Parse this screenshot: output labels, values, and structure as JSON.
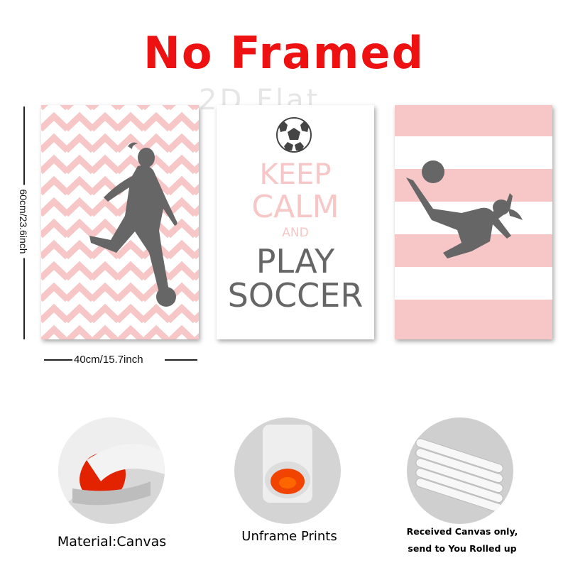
{
  "header": {
    "title": "No Framed",
    "watermark": "2D Flat"
  },
  "posters": {
    "center": {
      "line1": "KEEP",
      "line2": "CALM",
      "line3": "AND",
      "line4": "PLAY",
      "line5": "SOCCER"
    }
  },
  "dimensions": {
    "height": "60cm/23.6inch",
    "width": "40cm/15.7inch"
  },
  "features": [
    {
      "caption": "Material:Canvas"
    },
    {
      "caption": "Unframe  Prints"
    },
    {
      "caption_line1": "Received Canvas only,",
      "caption_line2": "send to You Rolled up"
    }
  ],
  "colors": {
    "title": "#ee1111",
    "pink": "#f7c6c6",
    "silhouette": "#666666"
  }
}
